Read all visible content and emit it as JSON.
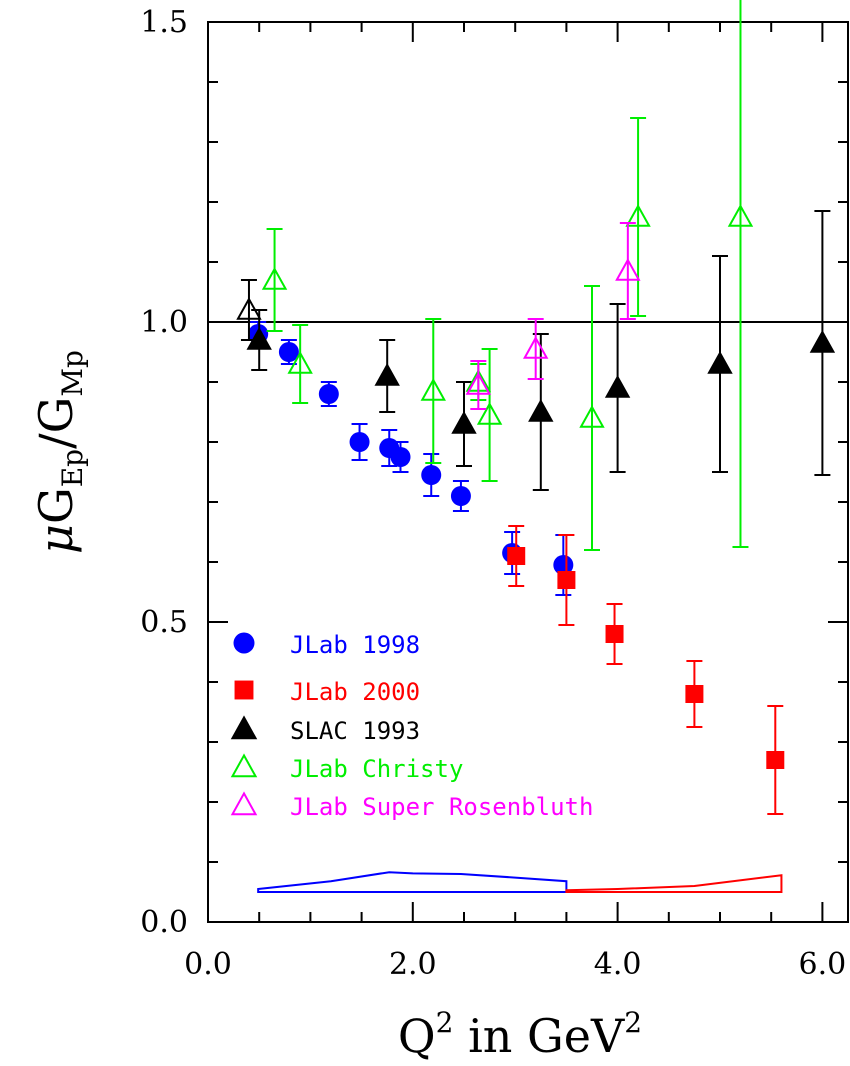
{
  "chart_data": {
    "type": "scatter",
    "xlabel": {
      "main": "Q",
      "sup": "2",
      "middle": " in GeV",
      "sup2": "2"
    },
    "ylabel": {
      "mu": "μ",
      "g1": "G",
      "sub1": "Ep",
      "slash": "/",
      "g2": "G",
      "sub2": "Mp"
    },
    "xlim": [
      0,
      6.25
    ],
    "ylim": [
      0,
      1.5
    ],
    "x_ticks": [
      "0.0",
      "2.0",
      "4.0",
      "6.0"
    ],
    "x_tick_values": [
      0,
      2,
      4,
      6
    ],
    "y_ticks": [
      "0.0",
      "0.5",
      "1.0",
      "1.5"
    ],
    "y_tick_values": [
      0,
      0.5,
      1.0,
      1.5
    ],
    "reference_line": 1.0,
    "series": [
      {
        "name": "JLab 1998",
        "marker": "circle-filled",
        "color": "#0000ff",
        "points": [
          {
            "x": 0.49,
            "y": 0.98,
            "err": 0.02
          },
          {
            "x": 0.79,
            "y": 0.95,
            "err": 0.02
          },
          {
            "x": 1.18,
            "y": 0.88,
            "err": 0.02
          },
          {
            "x": 1.48,
            "y": 0.8,
            "err": 0.03
          },
          {
            "x": 1.77,
            "y": 0.79,
            "err": 0.03
          },
          {
            "x": 1.88,
            "y": 0.775,
            "err": 0.025
          },
          {
            "x": 2.47,
            "y": 0.71,
            "err": 0.025
          },
          {
            "x": 2.97,
            "y": 0.615,
            "err": 0.035
          },
          {
            "x": 3.47,
            "y": 0.595,
            "err": 0.05
          },
          {
            "x": 2.18,
            "y": 0.745,
            "err": 0.035
          }
        ]
      },
      {
        "name": "JLab 2000",
        "marker": "square-filled",
        "color": "#ff0000",
        "points": [
          {
            "x": 3.5,
            "y": 0.57,
            "err": 0.075
          },
          {
            "x": 3.97,
            "y": 0.48,
            "err": 0.05
          },
          {
            "x": 4.75,
            "y": 0.38,
            "err": 0.055
          },
          {
            "x": 5.54,
            "y": 0.27,
            "err": 0.09
          },
          {
            "x": 3.01,
            "y": 0.61,
            "err": 0.05
          }
        ]
      },
      {
        "name": "SLAC 1993",
        "marker": "triangle-filled",
        "color": "#000000",
        "points": [
          {
            "x": 0.5,
            "y": 0.97,
            "err": 0.05
          },
          {
            "x": 1.75,
            "y": 0.91,
            "err": 0.06
          },
          {
            "x": 2.5,
            "y": 0.83,
            "err": 0.07
          },
          {
            "x": 3.25,
            "y": 0.85,
            "err": 0.13
          },
          {
            "x": 4.0,
            "y": 0.89,
            "err": 0.14
          },
          {
            "x": 5.0,
            "y": 0.93,
            "err": 0.18
          },
          {
            "x": 6.0,
            "y": 0.965,
            "err": 0.22
          },
          {
            "x": 0.4,
            "y": 1.02,
            "err": 0.05,
            "open": true
          }
        ]
      },
      {
        "name": "JLab Christy",
        "marker": "triangle-open",
        "color": "#00ee00",
        "points": [
          {
            "x": 0.65,
            "y": 1.07,
            "err": 0.085
          },
          {
            "x": 0.9,
            "y": 0.93,
            "err": 0.065
          },
          {
            "x": 2.2,
            "y": 0.885,
            "err": 0.12
          },
          {
            "x": 2.64,
            "y": 0.9,
            "err": 0.03
          },
          {
            "x": 2.75,
            "y": 0.845,
            "err": 0.11
          },
          {
            "x": 3.75,
            "y": 0.84,
            "err": 0.22
          },
          {
            "x": 4.2,
            "y": 1.175,
            "err": 0.165
          },
          {
            "x": 5.2,
            "y": 1.175,
            "err": 0.55
          }
        ]
      },
      {
        "name": "JLab Super Rosenbluth",
        "marker": "triangle-open",
        "color": "#ff00ff",
        "points": [
          {
            "x": 2.64,
            "y": 0.895,
            "err": 0.04
          },
          {
            "x": 3.2,
            "y": 0.955,
            "err": 0.05
          },
          {
            "x": 4.1,
            "y": 1.085,
            "err": 0.08
          }
        ]
      }
    ],
    "systematic_bands": [
      {
        "color": "#0000ff",
        "x": [
          0.49,
          1.2,
          1.77,
          2.0,
          2.47,
          3.0,
          3.5
        ],
        "upper": [
          0.055,
          0.068,
          0.083,
          0.081,
          0.08,
          0.074,
          0.068
        ],
        "lower": 0.05
      },
      {
        "color": "#ff0000",
        "x": [
          3.5,
          4.0,
          4.75,
          5.6
        ],
        "upper": [
          0.053,
          0.055,
          0.06,
          0.078
        ],
        "lower": 0.05
      }
    ]
  }
}
